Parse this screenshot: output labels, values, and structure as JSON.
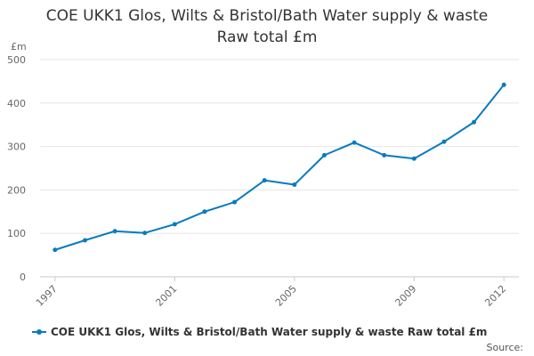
{
  "chart_data": {
    "type": "line",
    "title_lines": [
      "COE UKK1 Glos, Wilts & Bristol/Bath Water supply & waste",
      "Raw total £m"
    ],
    "ylabel": "£m",
    "xlabel": "",
    "x": [
      1997,
      1998,
      1999,
      2000,
      2001,
      2002,
      2003,
      2004,
      2005,
      2006,
      2007,
      2008,
      2009,
      2010,
      2011,
      2012
    ],
    "x_tick_labels": [
      "1997",
      "2001",
      "2005",
      "2009",
      "2012"
    ],
    "x_tick_values": [
      1997,
      2001,
      2005,
      2009,
      2012
    ],
    "y_ticks": [
      0,
      100,
      200,
      300,
      400,
      500
    ],
    "ylim": [
      0,
      500
    ],
    "series": [
      {
        "name": "COE UKK1 Glos, Wilts & Bristol/Bath Water supply & waste Raw total £m",
        "color": "#0a7bbd",
        "values": [
          62,
          84,
          105,
          101,
          121,
          150,
          172,
          222,
          212,
          280,
          309,
          280,
          272,
          311,
          356,
          442
        ]
      }
    ],
    "grid": true,
    "legend_position": "bottom"
  },
  "source_label": "Source:"
}
